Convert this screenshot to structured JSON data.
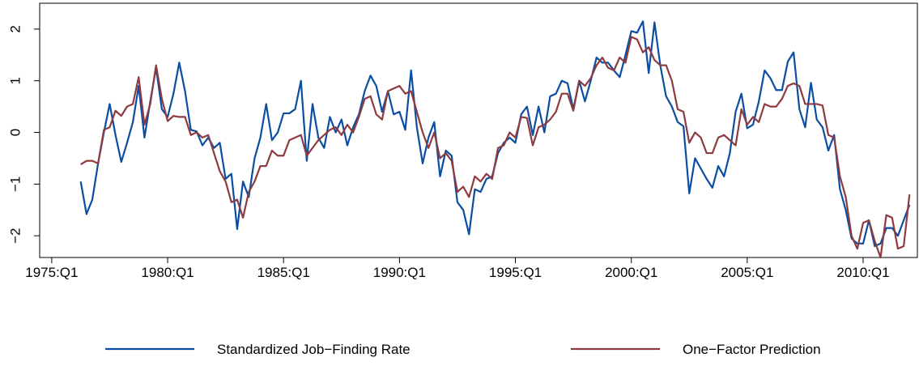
{
  "chart_data": {
    "type": "line",
    "x": [
      1976.25,
      1976.5,
      1976.75,
      1977,
      1977.25,
      1977.5,
      1977.75,
      1978,
      1978.25,
      1978.5,
      1978.75,
      1979,
      1979.25,
      1979.5,
      1979.75,
      1980,
      1980.25,
      1980.5,
      1980.75,
      1981,
      1981.25,
      1981.5,
      1981.75,
      1982,
      1982.25,
      1982.5,
      1982.75,
      1983,
      1983.25,
      1983.5,
      1983.75,
      1984,
      1984.25,
      1984.5,
      1984.75,
      1985,
      1985.25,
      1985.5,
      1985.75,
      1986,
      1986.25,
      1986.5,
      1986.75,
      1987,
      1987.25,
      1987.5,
      1987.75,
      1988,
      1988.25,
      1988.5,
      1988.75,
      1989,
      1989.25,
      1989.5,
      1989.75,
      1990,
      1990.25,
      1990.5,
      1990.75,
      1991,
      1991.25,
      1991.5,
      1991.75,
      1992,
      1992.25,
      1992.5,
      1992.75,
      1993,
      1993.25,
      1993.5,
      1993.75,
      1994,
      1994.25,
      1994.5,
      1994.75,
      1995,
      1995.25,
      1995.5,
      1995.75,
      1996,
      1996.25,
      1996.5,
      1996.75,
      1997,
      1997.25,
      1997.5,
      1997.75,
      1998,
      1998.25,
      1998.5,
      1998.75,
      1999,
      1999.25,
      1999.5,
      1999.75,
      2000,
      2000.25,
      2000.5,
      2000.75,
      2001,
      2001.25,
      2001.5,
      2001.75,
      2002,
      2002.25,
      2002.5,
      2002.75,
      2003,
      2003.25,
      2003.5,
      2003.75,
      2004,
      2004.25,
      2004.5,
      2004.75,
      2005,
      2005.25,
      2005.5,
      2005.75,
      2006,
      2006.25,
      2006.5,
      2006.75,
      2007,
      2007.25,
      2007.5,
      2007.75,
      2008,
      2008.25,
      2008.5,
      2008.75,
      2009,
      2009.25,
      2009.5,
      2009.75,
      2010,
      2010.25,
      2010.5,
      2010.75,
      2011,
      2011.25,
      2011.5,
      2011.75,
      2012
    ],
    "series": [
      {
        "name": "Standardized Job−Finding Rate",
        "color": "#0a4ea3",
        "values": [
          -0.95,
          -1.58,
          -1.3,
          -0.6,
          0.0,
          0.55,
          -0.05,
          -0.57,
          -0.2,
          0.2,
          0.9,
          -0.1,
          0.6,
          1.25,
          0.45,
          0.3,
          0.75,
          1.35,
          0.8,
          0.05,
          0.02,
          -0.25,
          -0.1,
          -0.3,
          -0.2,
          -0.9,
          -0.8,
          -1.87,
          -0.95,
          -1.25,
          -0.5,
          -0.1,
          0.55,
          -0.15,
          0.0,
          0.37,
          0.37,
          0.45,
          1.0,
          -0.55,
          0.55,
          -0.1,
          -0.3,
          0.3,
          0.0,
          0.25,
          -0.25,
          0.1,
          0.35,
          0.8,
          1.1,
          0.9,
          0.4,
          0.8,
          0.35,
          0.4,
          0.05,
          1.2,
          0.1,
          -0.6,
          -0.1,
          0.2,
          -0.85,
          -0.35,
          -0.45,
          -1.35,
          -1.5,
          -1.97,
          -1.1,
          -1.15,
          -0.9,
          -0.85,
          -0.4,
          -0.2,
          -0.1,
          -0.2,
          0.35,
          0.5,
          -0.05,
          0.5,
          0.0,
          0.7,
          0.75,
          1.0,
          0.95,
          0.45,
          1.0,
          0.6,
          1.0,
          1.45,
          1.35,
          1.35,
          1.2,
          1.07,
          1.5,
          1.96,
          1.93,
          2.15,
          1.15,
          2.13,
          1.3,
          0.7,
          0.5,
          0.2,
          0.12,
          -1.18,
          -0.5,
          -0.7,
          -0.9,
          -1.07,
          -0.65,
          -0.85,
          -0.4,
          0.4,
          0.75,
          0.08,
          0.15,
          0.6,
          1.2,
          1.05,
          0.82,
          0.82,
          1.37,
          1.55,
          0.45,
          0.1,
          0.96,
          0.25,
          0.1,
          -0.35,
          -0.05,
          -1.1,
          -1.5,
          -2.05,
          -2.15,
          -2.15,
          -1.7,
          -2.2,
          -2.15,
          -1.85,
          -1.85,
          -2.0,
          -1.7,
          -1.4
        ]
      },
      {
        "name": "One−Factor Prediction",
        "color": "#8e3a3f",
        "values": [
          -0.62,
          -0.55,
          -0.55,
          -0.6,
          0.05,
          0.1,
          0.42,
          0.32,
          0.5,
          0.55,
          1.07,
          0.15,
          0.55,
          1.3,
          0.65,
          0.22,
          0.32,
          0.3,
          0.3,
          -0.05,
          0.0,
          -0.1,
          -0.05,
          -0.4,
          -0.75,
          -0.95,
          -1.35,
          -1.3,
          -1.65,
          -1.15,
          -0.95,
          -0.65,
          -0.65,
          -0.35,
          -0.45,
          -0.45,
          -0.15,
          -0.1,
          -0.05,
          -0.45,
          -0.3,
          -0.15,
          -0.05,
          0.05,
          0.1,
          -0.05,
          0.15,
          0.0,
          0.3,
          0.65,
          0.7,
          0.35,
          0.25,
          0.8,
          0.85,
          0.9,
          0.75,
          0.8,
          0.4,
          0.0,
          -0.3,
          0.0,
          -0.5,
          -0.4,
          -0.55,
          -1.15,
          -1.05,
          -1.25,
          -0.85,
          -0.95,
          -0.8,
          -0.9,
          -0.3,
          -0.25,
          0.0,
          -0.1,
          0.3,
          0.28,
          -0.25,
          0.1,
          0.15,
          0.25,
          0.4,
          0.75,
          0.75,
          0.42,
          1.0,
          0.9,
          1.05,
          1.3,
          1.45,
          1.25,
          1.2,
          1.45,
          1.35,
          1.85,
          1.8,
          1.55,
          1.65,
          1.4,
          1.3,
          1.3,
          1.0,
          0.45,
          0.4,
          -0.2,
          0.0,
          -0.1,
          -0.4,
          -0.4,
          -0.1,
          -0.05,
          -0.15,
          -0.25,
          0.45,
          0.15,
          0.3,
          0.2,
          0.55,
          0.5,
          0.5,
          0.65,
          0.9,
          0.95,
          0.9,
          0.55,
          0.55,
          0.55,
          0.52,
          -0.05,
          -0.1,
          -0.85,
          -1.25,
          -2.0,
          -2.25,
          -1.75,
          -1.7,
          -2.1,
          -2.42,
          -1.6,
          -1.65,
          -2.25,
          -2.2,
          -1.2
        ]
      }
    ],
    "xlim": [
      1974.48,
      2012.34
    ],
    "xticks": [
      {
        "value": 1975,
        "label": "1975:Q1"
      },
      {
        "value": 1980,
        "label": "1980:Q1"
      },
      {
        "value": 1985,
        "label": "1985:Q1"
      },
      {
        "value": 1990,
        "label": "1990:Q1"
      },
      {
        "value": 1995,
        "label": "1995:Q1"
      },
      {
        "value": 2000,
        "label": "2000:Q1"
      },
      {
        "value": 2005,
        "label": "2005:Q1"
      },
      {
        "value": 2010,
        "label": "2010:Q1"
      }
    ],
    "ylim": [
      -2.42,
      2.5
    ],
    "yticks": [
      {
        "value": -2,
        "label": "−2"
      },
      {
        "value": -1,
        "label": "−1"
      },
      0,
      1,
      2
    ],
    "grid": false,
    "legend": "bottom"
  }
}
